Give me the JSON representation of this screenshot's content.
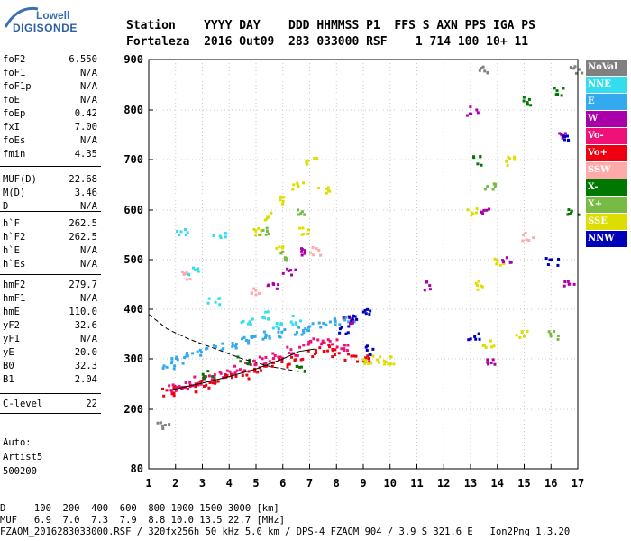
{
  "logo": {
    "line1": "Lowell",
    "line2": "DIGISONDE"
  },
  "header": {
    "line1": "Station    YYYY DAY    DDD HHMMSS P1  FFS S AXN PPS IGA PS",
    "line2": "Fortaleza  2016 Out09  283 033000 RSF    1 714 100 10+ 11"
  },
  "params": [
    {
      "label": "foF2",
      "value": "6.550"
    },
    {
      "label": "foF1",
      "value": "N/A"
    },
    {
      "label": "foF1p",
      "value": "N/A"
    },
    {
      "label": "foE",
      "value": "N/A"
    },
    {
      "label": "foEp",
      "value": "0.42"
    },
    {
      "label": "fxI",
      "value": "7.00"
    },
    {
      "label": "foEs",
      "value": "N/A"
    },
    {
      "label": "fmin",
      "value": "4.35"
    },
    {
      "label": "MUF(D)",
      "value": "22.68"
    },
    {
      "label": "M(D)",
      "value": "3.46"
    },
    {
      "label": "D",
      "value": "N/A"
    },
    {
      "label": "h`F",
      "value": "262.5"
    },
    {
      "label": "h`F2",
      "value": "262.5"
    },
    {
      "label": "h`E",
      "value": "N/A"
    },
    {
      "label": "h`Es",
      "value": "N/A"
    },
    {
      "label": "hmF2",
      "value": "279.7"
    },
    {
      "label": "hmF1",
      "value": "N/A"
    },
    {
      "label": "hmE",
      "value": "110.0"
    },
    {
      "label": "yF2",
      "value": "32.6"
    },
    {
      "label": "yF1",
      "value": "N/A"
    },
    {
      "label": "yE",
      "value": "20.0"
    },
    {
      "label": "B0",
      "value": "32.3"
    },
    {
      "label": "B1",
      "value": "2.04"
    },
    {
      "label": "C-level",
      "value": "22"
    }
  ],
  "autoscaling": {
    "line1": "Auto:",
    "line2": "Artist5",
    "line3": "500200"
  },
  "legend": [
    {
      "label": "NoVal",
      "color": "#808080"
    },
    {
      "label": "NNE",
      "color": "#33ddee"
    },
    {
      "label": "E",
      "color": "#33aaee"
    },
    {
      "label": "W",
      "color": "#aa00aa"
    },
    {
      "label": "Vo-",
      "color": "#ee1177"
    },
    {
      "label": "Vo+",
      "color": "#ee0011"
    },
    {
      "label": "SSW",
      "color": "#ffaaaa"
    },
    {
      "label": "X-",
      "color": "#007700"
    },
    {
      "label": "X+",
      "color": "#77bb44"
    },
    {
      "label": "SSE",
      "color": "#dddd00"
    },
    {
      "label": "NNW",
      "color": "#0000bb"
    }
  ],
  "footer": {
    "d_row": "D     100  200  400  600  800 1000 1500 3000 [km]",
    "muf_row": "MUF   6.9  7.0  7.3  7.9  8.8 10.0 13.5 22.7 [MHz]",
    "file_row": "FZAOM_2016283033000.RSF / 320fx256h 50 kHz 5.0 km / DPS-4 FZAOM 904 / 3.9 S 321.6 E   Ion2Png 1.3.20"
  },
  "chart_data": {
    "type": "scatter",
    "title": "",
    "xlabel": "",
    "ylabel": "",
    "xlim": [
      1,
      17
    ],
    "ylim": [
      80,
      900
    ],
    "x_ticks": [
      1,
      2,
      3,
      4,
      5,
      6,
      7,
      8,
      9,
      10,
      11,
      12,
      13,
      14,
      15,
      16,
      17
    ],
    "y_ticks": [
      80,
      200,
      300,
      400,
      500,
      600,
      700,
      800,
      900
    ],
    "grid": true,
    "legend_position": "right",
    "series": [
      {
        "color": "#ee0011",
        "points": [
          [
            1.7,
            235
          ],
          [
            2.0,
            240
          ],
          [
            2.5,
            245
          ],
          [
            3.0,
            252
          ],
          [
            3.5,
            258
          ],
          [
            4.0,
            265
          ],
          [
            4.5,
            272
          ],
          [
            5.0,
            280
          ],
          [
            5.5,
            287
          ],
          [
            6.0,
            295
          ],
          [
            6.5,
            305
          ],
          [
            7.0,
            315
          ],
          [
            7.5,
            322
          ],
          [
            8.0,
            315
          ],
          [
            8.5,
            305
          ],
          [
            9.0,
            300
          ]
        ]
      },
      {
        "color": "#ee1177",
        "points": [
          [
            1.8,
            245
          ],
          [
            2.3,
            250
          ],
          [
            2.8,
            258
          ],
          [
            3.3,
            265
          ],
          [
            3.8,
            272
          ],
          [
            4.3,
            280
          ],
          [
            4.8,
            290
          ],
          [
            5.3,
            298
          ],
          [
            5.8,
            308
          ],
          [
            6.3,
            318
          ],
          [
            6.8,
            330
          ],
          [
            7.3,
            340
          ],
          [
            7.8,
            335
          ],
          [
            8.3,
            322
          ]
        ]
      },
      {
        "color": "#33aaee",
        "points": [
          [
            1.7,
            290
          ],
          [
            2.0,
            300
          ],
          [
            2.5,
            310
          ],
          [
            3.0,
            318
          ],
          [
            3.5,
            325
          ],
          [
            4.0,
            330
          ],
          [
            4.5,
            338
          ],
          [
            5.0,
            345
          ],
          [
            5.5,
            350
          ],
          [
            6.0,
            355
          ],
          [
            6.5,
            360
          ],
          [
            7.0,
            368
          ],
          [
            7.5,
            372
          ],
          [
            8.0,
            378
          ],
          [
            8.5,
            385
          ]
        ]
      },
      {
        "color": "#33ddee",
        "points": [
          [
            2.2,
            560
          ],
          [
            2.6,
            480
          ],
          [
            3.4,
            420
          ],
          [
            4.6,
            380
          ],
          [
            5.2,
            390
          ],
          [
            5.8,
            370
          ],
          [
            6.4,
            380
          ],
          [
            3.6,
            550
          ]
        ]
      },
      {
        "color": "#dddd00",
        "points": [
          [
            5.0,
            560
          ],
          [
            5.5,
            590
          ],
          [
            6.0,
            620
          ],
          [
            6.5,
            650
          ],
          [
            7.0,
            700
          ],
          [
            5.8,
            520
          ],
          [
            6.8,
            560
          ],
          [
            7.5,
            640
          ],
          [
            9.2,
            300
          ],
          [
            9.6,
            300
          ],
          [
            10.0,
            298
          ],
          [
            13.0,
            600
          ],
          [
            13.3,
            450
          ],
          [
            13.6,
            330
          ],
          [
            14.0,
            500
          ],
          [
            14.4,
            700
          ],
          [
            14.9,
            350
          ]
        ]
      },
      {
        "color": "#aa00aa",
        "points": [
          [
            5.6,
            450
          ],
          [
            6.2,
            480
          ],
          [
            6.8,
            520
          ],
          [
            8.4,
            380
          ],
          [
            11.4,
            450
          ],
          [
            13.0,
            800
          ],
          [
            13.5,
            600
          ],
          [
            13.8,
            300
          ],
          [
            14.3,
            500
          ],
          [
            16.3,
            750
          ],
          [
            16.6,
            450
          ]
        ]
      },
      {
        "color": "#0000bb",
        "points": [
          [
            8.2,
            360
          ],
          [
            8.6,
            380
          ],
          [
            9.0,
            400
          ],
          [
            9.1,
            320
          ],
          [
            16.0,
            500
          ],
          [
            16.5,
            750
          ],
          [
            13.1,
            350
          ]
        ]
      },
      {
        "color": "#007700",
        "points": [
          [
            3.2,
            270
          ],
          [
            4.5,
            300
          ],
          [
            6.6,
            280
          ],
          [
            13.2,
            700
          ],
          [
            16.2,
            840
          ],
          [
            16.8,
            600
          ],
          [
            15.0,
            820
          ]
        ]
      },
      {
        "color": "#77bb44",
        "points": [
          [
            5.3,
            560
          ],
          [
            6.0,
            510
          ],
          [
            6.6,
            600
          ],
          [
            13.7,
            650
          ],
          [
            16.0,
            350
          ]
        ]
      },
      {
        "color": "#ffaaaa",
        "points": [
          [
            2.3,
            470
          ],
          [
            4.9,
            440
          ],
          [
            15.1,
            550
          ],
          [
            7.2,
            520
          ]
        ]
      },
      {
        "color": "#808080",
        "points": [
          [
            16.9,
            880
          ],
          [
            13.4,
            880
          ],
          [
            1.5,
            170
          ]
        ]
      }
    ],
    "trace_lines": [
      {
        "style": "dashed",
        "points": [
          [
            1.0,
            390
          ],
          [
            1.7,
            360
          ],
          [
            2.5,
            340
          ],
          [
            3.5,
            320
          ],
          [
            4.5,
            300
          ],
          [
            5.5,
            285
          ],
          [
            6.6,
            275
          ]
        ]
      },
      {
        "style": "solid",
        "points": [
          [
            1.8,
            238
          ],
          [
            3.0,
            252
          ],
          [
            4.0,
            265
          ],
          [
            5.0,
            280
          ],
          [
            6.0,
            300
          ],
          [
            6.6,
            315
          ],
          [
            7.2,
            320
          ]
        ]
      }
    ]
  }
}
